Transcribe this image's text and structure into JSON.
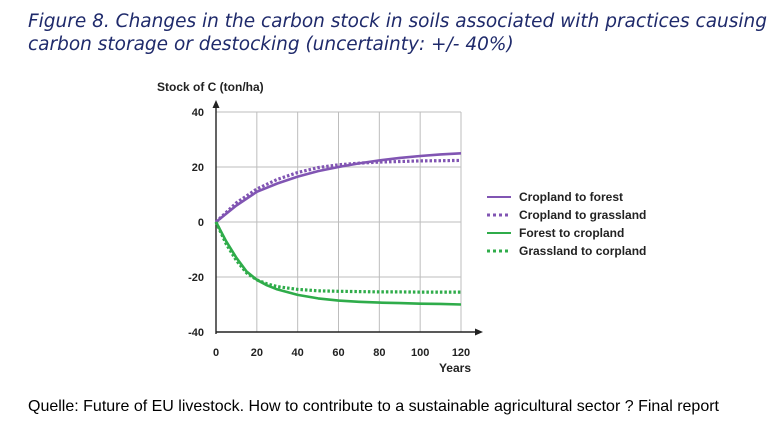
{
  "caption": "Figure 8. Changes in the carbon stock in soils associated with practices causing carbon storage or destocking (uncertainty: +/- 40%)",
  "source": "Quelle: Future of EU livestock. How to contribute to a sustainable agricultural sector ? Final report",
  "chart_data": {
    "type": "line",
    "title": "",
    "ylabel": "Stock of C (ton/ha)",
    "xlabel": "Years",
    "xlim": [
      0,
      120
    ],
    "ylim": [
      -40,
      40
    ],
    "xticks": [
      0,
      20,
      40,
      60,
      80,
      100,
      120
    ],
    "yticks": [
      40,
      20,
      0,
      -20,
      -40
    ],
    "grid": true,
    "legend_position": "right",
    "series": [
      {
        "name": "Cropland to forest",
        "color": "#8155b3",
        "style": "solid",
        "x": [
          0,
          10,
          20,
          30,
          40,
          50,
          60,
          70,
          80,
          90,
          100,
          110,
          120
        ],
        "y": [
          0,
          6,
          11,
          14,
          16.5,
          18.5,
          20,
          21.3,
          22.4,
          23.3,
          24,
          24.6,
          25
        ]
      },
      {
        "name": "Cropland to grassland",
        "color": "#8155b3",
        "style": "dotted",
        "x": [
          0,
          10,
          20,
          30,
          40,
          50,
          60,
          70,
          80,
          90,
          100,
          110,
          120
        ],
        "y": [
          0,
          7,
          12,
          15.5,
          18,
          19.8,
          20.8,
          21.4,
          21.8,
          22,
          22.2,
          22.3,
          22.4
        ]
      },
      {
        "name": "Forest to cropland",
        "color": "#2fac4a",
        "style": "solid",
        "x": [
          0,
          5,
          10,
          15,
          20,
          25,
          30,
          40,
          50,
          60,
          70,
          80,
          90,
          100,
          110,
          120
        ],
        "y": [
          0,
          -7,
          -13,
          -18,
          -21,
          -23,
          -24.5,
          -26.5,
          -27.8,
          -28.6,
          -29,
          -29.3,
          -29.5,
          -29.7,
          -29.8,
          -30
        ]
      },
      {
        "name": "Grassland to corpland",
        "color": "#2fac4a",
        "style": "dotted",
        "x": [
          0,
          5,
          10,
          15,
          20,
          25,
          30,
          40,
          50,
          60,
          70,
          80,
          90,
          100,
          110,
          120
        ],
        "y": [
          0,
          -8,
          -14,
          -18.5,
          -21,
          -22.5,
          -23.5,
          -24.5,
          -25,
          -25.2,
          -25.3,
          -25.4,
          -25.4,
          -25.5,
          -25.5,
          -25.5
        ]
      }
    ]
  }
}
